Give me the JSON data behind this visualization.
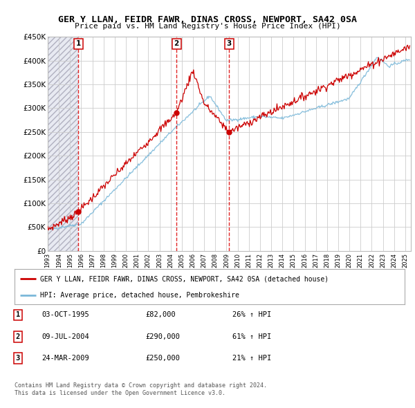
{
  "title": "GER Y LLAN, FEIDR FAWR, DINAS CROSS, NEWPORT, SA42 0SA",
  "subtitle": "Price paid vs. HM Land Registry's House Price Index (HPI)",
  "ylim": [
    0,
    450000
  ],
  "yticks": [
    0,
    50000,
    100000,
    150000,
    200000,
    250000,
    300000,
    350000,
    400000,
    450000
  ],
  "ytick_labels": [
    "£0",
    "£50K",
    "£100K",
    "£150K",
    "£200K",
    "£250K",
    "£300K",
    "£350K",
    "£400K",
    "£450K"
  ],
  "xlim_start": 1993.0,
  "xlim_end": 2025.5,
  "transactions": [
    {
      "date_num": 1995.75,
      "price": 82000,
      "label": "1"
    },
    {
      "date_num": 2004.52,
      "price": 290000,
      "label": "2"
    },
    {
      "date_num": 2009.23,
      "price": 250000,
      "label": "3"
    }
  ],
  "legend_line1": "GER Y LLAN, FEIDR FAWR, DINAS CROSS, NEWPORT, SA42 0SA (detached house)",
  "legend_line2": "HPI: Average price, detached house, Pembrokeshire",
  "table_rows": [
    {
      "num": "1",
      "date": "03-OCT-1995",
      "price": "£82,000",
      "hpi": "26% ↑ HPI"
    },
    {
      "num": "2",
      "date": "09-JUL-2004",
      "price": "£290,000",
      "hpi": "61% ↑ HPI"
    },
    {
      "num": "3",
      "date": "24-MAR-2009",
      "price": "£250,000",
      "hpi": "21% ↑ HPI"
    }
  ],
  "footnote1": "Contains HM Land Registry data © Crown copyright and database right 2024.",
  "footnote2": "This data is licensed under the Open Government Licence v3.0.",
  "hpi_color": "#7ab8d9",
  "price_color": "#cc0000",
  "grid_color": "#cccccc",
  "hatch_facecolor": "#e8eaf2"
}
